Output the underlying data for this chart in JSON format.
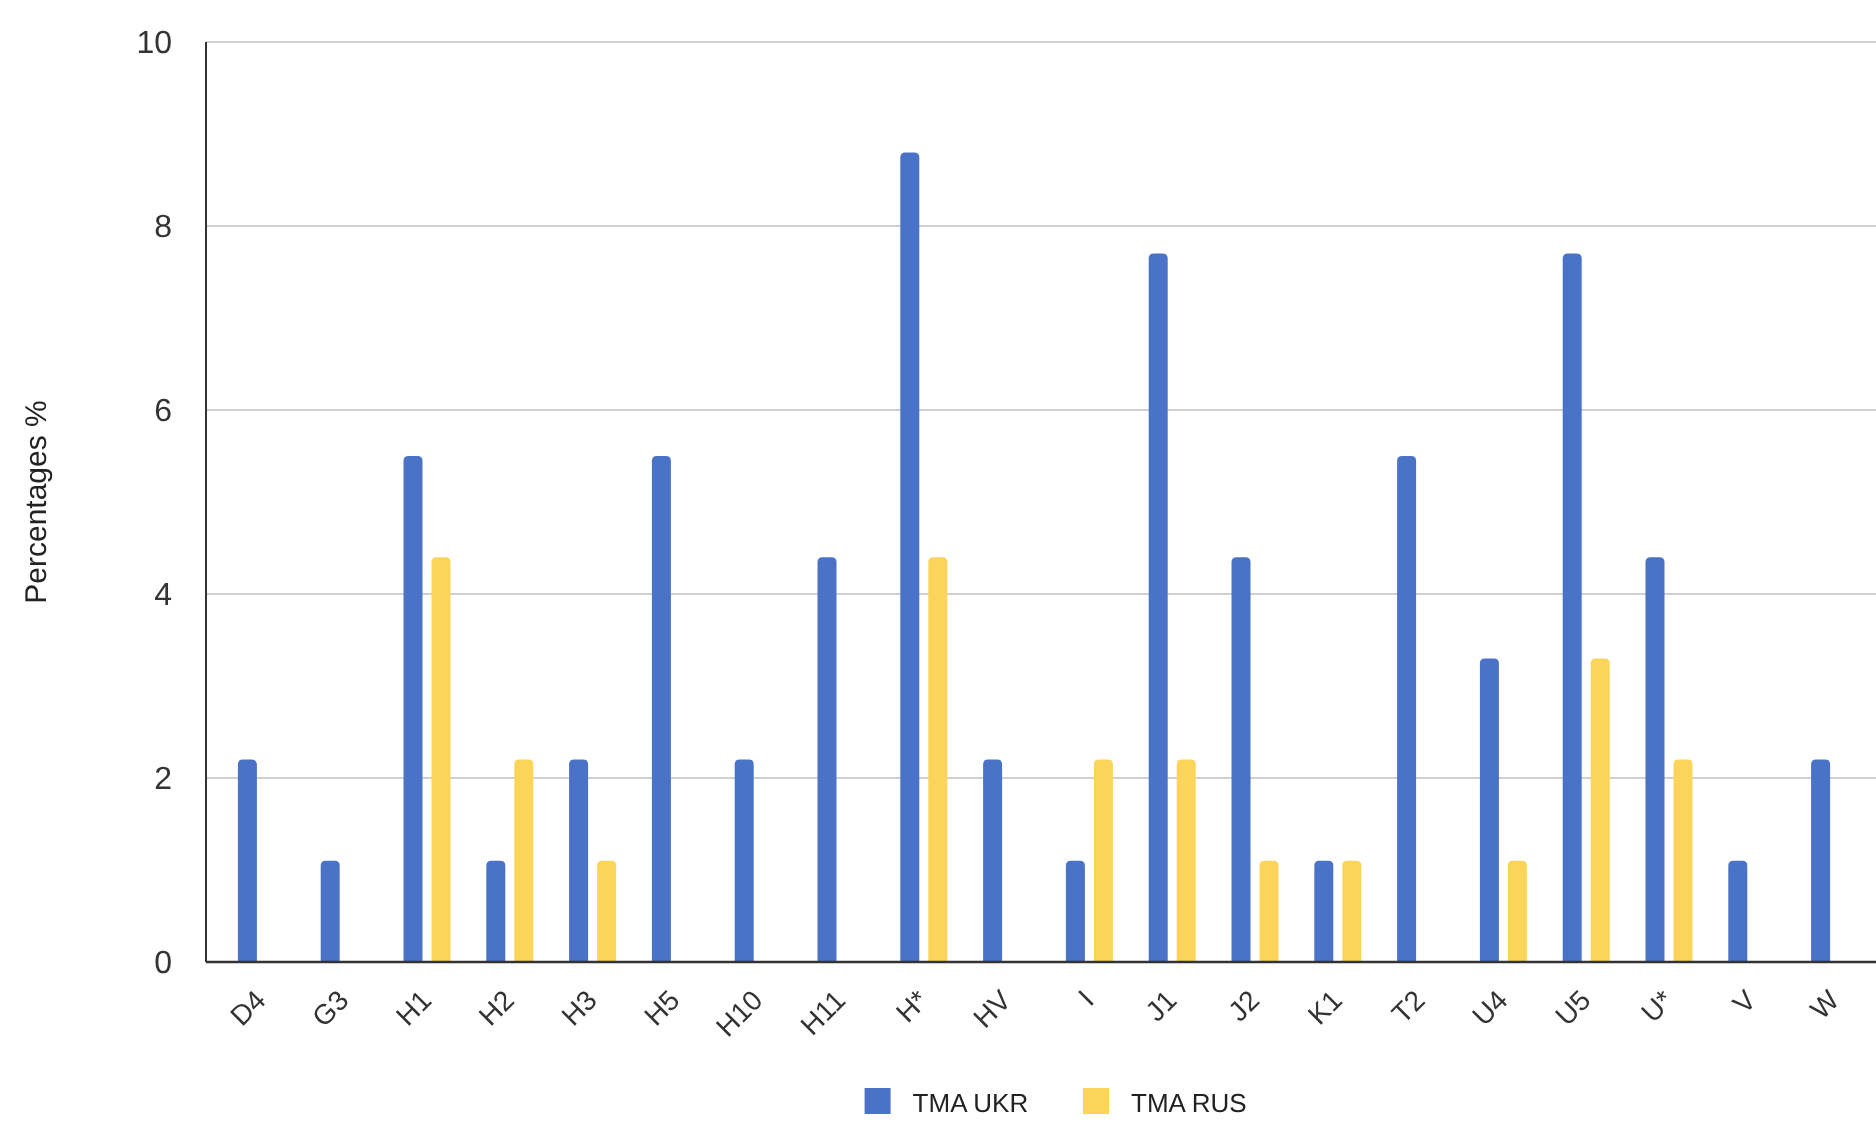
{
  "chart_data": {
    "type": "bar",
    "ylabel": "Percentages %",
    "categories": [
      "D4",
      "G3",
      "H1",
      "H2",
      "H3",
      "H5",
      "H10",
      "H11",
      "H*",
      "HV",
      "I",
      "J1",
      "J2",
      "K1",
      "T2",
      "U4",
      "U5",
      "U*",
      "V",
      "W"
    ],
    "series": [
      {
        "name": "TMA UKR",
        "color": "#4a73c8",
        "values": [
          2.2,
          1.1,
          5.5,
          1.1,
          2.2,
          5.5,
          2.2,
          4.4,
          8.8,
          2.2,
          1.1,
          7.7,
          4.4,
          1.1,
          5.5,
          3.3,
          7.7,
          4.4,
          1.1,
          2.2
        ]
      },
      {
        "name": "TMA RUS",
        "color": "#fcd45a",
        "values": [
          0,
          0,
          4.4,
          2.2,
          1.1,
          0,
          0,
          0,
          4.4,
          0,
          2.2,
          2.2,
          1.1,
          1.1,
          0,
          1.1,
          3.3,
          2.2,
          0,
          0
        ]
      }
    ],
    "ylim": [
      0,
      10
    ],
    "yticks": [
      0,
      2,
      4,
      6,
      8,
      10
    ],
    "grid": true,
    "legend": "bottom"
  }
}
